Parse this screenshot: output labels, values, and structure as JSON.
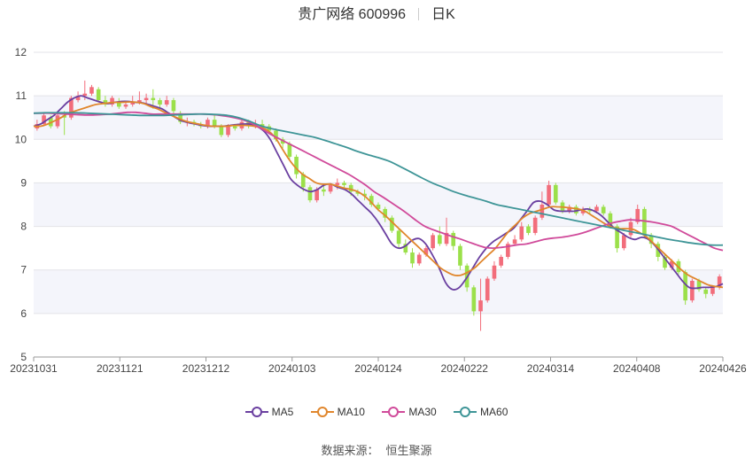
{
  "title": {
    "stock": "贵广网络 600996",
    "period": "日K"
  },
  "source": {
    "label": "数据来源：",
    "value": "恒生聚源"
  },
  "colors": {
    "up": "#f26d7b",
    "down": "#9be04a",
    "ma5": "#6a3fa0",
    "ma10": "#e0862c",
    "ma30": "#d04a9a",
    "ma60": "#3e9597",
    "band": "#f4f5fb"
  },
  "chart_data": {
    "type": "candlestick",
    "ylim": [
      5,
      12
    ],
    "y_ticks": [
      "5",
      "6",
      "7",
      "8",
      "9",
      "10",
      "11",
      "12"
    ],
    "x_tick_labels": [
      "20231031",
      "20231121",
      "20231212",
      "20240103",
      "20240124",
      "20240222",
      "20240314",
      "20240408",
      "20240426"
    ],
    "series": [
      {
        "name": "MA5",
        "values": [
          10.3,
          10.35,
          10.45,
          10.55,
          10.7,
          10.85,
          10.95,
          11.0,
          10.95,
          10.9,
          10.85,
          10.82,
          10.85,
          10.87,
          10.87,
          10.85,
          10.84,
          10.8,
          10.75,
          10.7,
          10.6,
          10.5,
          10.42,
          10.38,
          10.35,
          10.32,
          10.3,
          10.3,
          10.3,
          10.32,
          10.34,
          10.35,
          10.35,
          10.3,
          10.2,
          10.0,
          9.7,
          9.4,
          9.1,
          8.95,
          8.85,
          8.8,
          8.85,
          8.95,
          8.97,
          8.9,
          8.85,
          8.75,
          8.6,
          8.45,
          8.3,
          8.1,
          7.85,
          7.6,
          7.5,
          7.55,
          7.68,
          7.72,
          7.6,
          7.35,
          7.05,
          6.7,
          6.55,
          6.6,
          6.8,
          7.05,
          7.3,
          7.5,
          7.65,
          7.75,
          7.85,
          7.95,
          8.15,
          8.35,
          8.55,
          8.58,
          8.5,
          8.38,
          8.35,
          8.35,
          8.35,
          8.38,
          8.4,
          8.35,
          8.25,
          8.1,
          7.95,
          7.85,
          7.75,
          7.7,
          7.75,
          7.7,
          7.55,
          7.35,
          7.15,
          6.95,
          6.75,
          6.6,
          6.58,
          6.6,
          6.6,
          6.62,
          6.68
        ]
      },
      {
        "name": "MA10",
        "values": [
          10.3,
          10.3,
          10.35,
          10.42,
          10.5,
          10.6,
          10.65,
          10.7,
          10.75,
          10.8,
          10.82,
          10.84,
          10.85,
          10.85,
          10.86,
          10.85,
          10.82,
          10.75,
          10.7,
          10.62,
          10.55,
          10.48,
          10.42,
          10.38,
          10.35,
          10.32,
          10.3,
          10.3,
          10.3,
          10.32,
          10.32,
          10.32,
          10.3,
          10.27,
          10.2,
          10.05,
          9.8,
          9.55,
          9.35,
          9.2,
          9.1,
          9.0,
          8.97,
          8.97,
          8.93,
          8.88,
          8.85,
          8.8,
          8.7,
          8.55,
          8.38,
          8.25,
          8.1,
          7.95,
          7.8,
          7.65,
          7.5,
          7.35,
          7.2,
          7.05,
          6.95,
          6.88,
          6.88,
          6.95,
          7.05,
          7.2,
          7.35,
          7.5,
          7.7,
          7.9,
          8.05,
          8.2,
          8.3,
          8.35,
          8.4,
          8.45,
          8.45,
          8.44,
          8.42,
          8.4,
          8.35,
          8.25,
          8.15,
          8.05,
          7.98,
          7.95,
          7.95,
          7.93,
          7.85,
          7.75,
          7.6,
          7.45,
          7.3,
          7.15,
          7.0,
          6.88,
          6.8,
          6.72,
          6.65,
          6.62,
          6.6
        ]
      },
      {
        "name": "MA30",
        "values": [
          10.6,
          10.6,
          10.6,
          10.59,
          10.58,
          10.57,
          10.56,
          10.56,
          10.57,
          10.58,
          10.6,
          10.62,
          10.62,
          10.6,
          10.58,
          10.58,
          10.58,
          10.58,
          10.58,
          10.58,
          10.58,
          10.57,
          10.55,
          10.52,
          10.48,
          10.42,
          10.33,
          10.22,
          10.1,
          10.0,
          9.9,
          9.8,
          9.7,
          9.6,
          9.5,
          9.4,
          9.3,
          9.2,
          9.08,
          8.95,
          8.8,
          8.68,
          8.55,
          8.42,
          8.28,
          8.13,
          8.0,
          7.92,
          7.85,
          7.78,
          7.72,
          7.65,
          7.58,
          7.52,
          7.5,
          7.52,
          7.55,
          7.58,
          7.6,
          7.65,
          7.7,
          7.73,
          7.75,
          7.78,
          7.82,
          7.88,
          7.95,
          8.02,
          8.08,
          8.12,
          8.15,
          8.14,
          8.12,
          8.09,
          8.05,
          8.0,
          7.9,
          7.8,
          7.7,
          7.6,
          7.5,
          7.45
        ]
      },
      {
        "name": "MA60",
        "values": [
          10.6,
          10.61,
          10.61,
          10.61,
          10.61,
          10.6,
          10.59,
          10.58,
          10.57,
          10.56,
          10.55,
          10.55,
          10.55,
          10.56,
          10.57,
          10.58,
          10.58,
          10.57,
          10.55,
          10.5,
          10.42,
          10.32,
          10.25,
          10.2,
          10.15,
          10.1,
          10.05,
          9.98,
          9.9,
          9.82,
          9.73,
          9.65,
          9.58,
          9.5,
          9.38,
          9.25,
          9.12,
          9.0,
          8.9,
          8.8,
          8.72,
          8.65,
          8.58,
          8.5,
          8.45,
          8.4,
          8.35,
          8.3,
          8.25,
          8.2,
          8.15,
          8.1,
          8.05,
          8.0,
          7.95,
          7.9,
          7.85,
          7.8,
          7.75,
          7.7,
          7.66,
          7.62,
          7.59,
          7.57,
          7.57
        ]
      },
      {
        "name": "K",
        "candles": [
          [
            10.25,
            10.35,
            10.2,
            10.45
          ],
          [
            10.35,
            10.55,
            10.3,
            10.6
          ],
          [
            10.5,
            10.3,
            10.25,
            10.55
          ],
          [
            10.3,
            10.55,
            10.25,
            10.65
          ],
          [
            10.55,
            10.5,
            10.1,
            10.65
          ],
          [
            10.5,
            10.95,
            10.45,
            11.0
          ],
          [
            10.9,
            11.0,
            10.85,
            11.1
          ],
          [
            11.0,
            11.05,
            10.9,
            11.35
          ],
          [
            11.05,
            11.2,
            11.0,
            11.25
          ],
          [
            11.15,
            10.9,
            10.85,
            11.2
          ],
          [
            10.9,
            10.8,
            10.75,
            11.0
          ],
          [
            10.8,
            10.95,
            10.75,
            11.0
          ],
          [
            10.85,
            10.75,
            10.7,
            10.95
          ],
          [
            10.75,
            10.8,
            10.7,
            10.85
          ],
          [
            10.8,
            10.85,
            10.75,
            11.0
          ],
          [
            10.85,
            10.9,
            10.8,
            11.1
          ],
          [
            10.9,
            10.95,
            10.8,
            11.05
          ],
          [
            10.95,
            10.9,
            10.7,
            11.15
          ],
          [
            10.9,
            10.8,
            10.7,
            10.95
          ],
          [
            10.8,
            10.9,
            10.75,
            11.0
          ],
          [
            10.9,
            10.65,
            10.55,
            10.95
          ],
          [
            10.6,
            10.4,
            10.35,
            10.65
          ],
          [
            10.4,
            10.4,
            10.3,
            10.5
          ],
          [
            10.4,
            10.35,
            10.3,
            10.45
          ],
          [
            10.35,
            10.3,
            10.25,
            10.4
          ],
          [
            10.3,
            10.45,
            10.25,
            10.5
          ],
          [
            10.45,
            10.3,
            10.25,
            10.55
          ],
          [
            10.3,
            10.1,
            10.05,
            10.35
          ],
          [
            10.1,
            10.3,
            10.05,
            10.35
          ],
          [
            10.3,
            10.25,
            10.2,
            10.35
          ],
          [
            10.25,
            10.4,
            10.2,
            10.45
          ],
          [
            10.4,
            10.3,
            10.25,
            10.45
          ],
          [
            10.3,
            10.35,
            10.25,
            10.45
          ],
          [
            10.35,
            10.3,
            10.25,
            10.45
          ],
          [
            10.3,
            10.2,
            10.15,
            10.35
          ],
          [
            10.2,
            10.0,
            9.95,
            10.25
          ],
          [
            10.0,
            9.9,
            9.8,
            10.05
          ],
          [
            9.9,
            9.6,
            9.55,
            9.95
          ],
          [
            9.6,
            9.2,
            9.1,
            9.65
          ],
          [
            9.2,
            8.9,
            8.8,
            9.25
          ],
          [
            8.9,
            8.6,
            8.55,
            8.95
          ],
          [
            8.6,
            8.85,
            8.55,
            8.9
          ],
          [
            8.85,
            8.8,
            8.7,
            8.95
          ],
          [
            8.8,
            8.95,
            8.75,
            9.0
          ],
          [
            8.95,
            9.0,
            8.85,
            9.1
          ],
          [
            9.0,
            8.95,
            8.85,
            9.05
          ],
          [
            8.95,
            8.8,
            8.7,
            9.0
          ],
          [
            8.8,
            8.75,
            8.7,
            8.85
          ],
          [
            8.75,
            8.7,
            8.6,
            8.85
          ],
          [
            8.7,
            8.5,
            8.45,
            8.75
          ],
          [
            8.5,
            8.4,
            8.35,
            8.55
          ],
          [
            8.4,
            8.2,
            8.1,
            8.45
          ],
          [
            8.2,
            7.9,
            7.85,
            8.25
          ],
          [
            7.9,
            7.6,
            7.5,
            7.95
          ],
          [
            7.6,
            7.4,
            7.35,
            7.7
          ],
          [
            7.4,
            7.15,
            7.05,
            7.5
          ],
          [
            7.15,
            7.35,
            7.1,
            7.4
          ],
          [
            7.35,
            7.5,
            7.3,
            7.55
          ],
          [
            7.5,
            7.8,
            7.45,
            7.85
          ],
          [
            7.8,
            7.6,
            7.55,
            8.0
          ],
          [
            7.6,
            7.85,
            7.55,
            8.2
          ],
          [
            7.85,
            7.55,
            7.45,
            7.9
          ],
          [
            7.55,
            7.1,
            7.0,
            7.6
          ],
          [
            7.1,
            6.6,
            6.5,
            7.15
          ],
          [
            6.6,
            6.05,
            5.95,
            6.65
          ],
          [
            6.05,
            6.3,
            5.6,
            6.8
          ],
          [
            6.3,
            6.8,
            6.25,
            6.85
          ],
          [
            6.8,
            7.1,
            6.75,
            7.2
          ],
          [
            7.1,
            7.3,
            7.05,
            7.35
          ],
          [
            7.3,
            7.6,
            7.25,
            7.65
          ],
          [
            7.6,
            7.7,
            7.55,
            7.8
          ],
          [
            7.7,
            8.0,
            7.65,
            8.1
          ],
          [
            8.0,
            7.85,
            7.8,
            8.05
          ],
          [
            7.85,
            8.2,
            7.8,
            8.25
          ],
          [
            8.2,
            8.5,
            8.15,
            8.8
          ],
          [
            8.5,
            8.95,
            8.45,
            9.05
          ],
          [
            8.95,
            8.55,
            8.5,
            9.0
          ],
          [
            8.55,
            8.35,
            8.3,
            8.6
          ],
          [
            8.35,
            8.45,
            8.3,
            8.5
          ],
          [
            8.45,
            8.3,
            8.25,
            8.5
          ],
          [
            8.3,
            8.4,
            8.25,
            8.45
          ],
          [
            8.4,
            8.35,
            8.3,
            8.45
          ],
          [
            8.35,
            8.45,
            8.3,
            8.5
          ],
          [
            8.45,
            8.3,
            8.25,
            8.5
          ],
          [
            8.3,
            8.0,
            7.95,
            8.35
          ],
          [
            8.0,
            7.5,
            7.4,
            8.05
          ],
          [
            7.5,
            7.8,
            7.45,
            7.85
          ],
          [
            7.8,
            8.1,
            7.75,
            8.2
          ],
          [
            8.1,
            8.4,
            8.05,
            8.5
          ],
          [
            8.4,
            7.8,
            7.75,
            8.45
          ],
          [
            7.8,
            7.6,
            7.5,
            7.85
          ],
          [
            7.6,
            7.3,
            7.2,
            7.65
          ],
          [
            7.3,
            7.05,
            7.0,
            7.35
          ],
          [
            7.05,
            7.2,
            7.0,
            7.25
          ],
          [
            7.2,
            6.95,
            6.9,
            7.25
          ],
          [
            6.95,
            6.3,
            6.2,
            7.0
          ],
          [
            6.3,
            6.75,
            6.25,
            6.8
          ],
          [
            6.75,
            6.55,
            6.5,
            6.8
          ],
          [
            6.55,
            6.45,
            6.35,
            6.6
          ],
          [
            6.45,
            6.6,
            6.4,
            6.65
          ],
          [
            6.6,
            6.85,
            6.55,
            6.9
          ]
        ]
      }
    ]
  }
}
